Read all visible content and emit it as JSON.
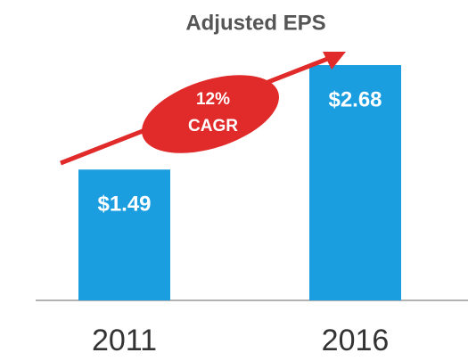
{
  "chart_data": {
    "type": "bar",
    "title": "Adjusted EPS",
    "categories": [
      "2011",
      "2016"
    ],
    "values": [
      1.49,
      2.68
    ],
    "value_labels": [
      "$1.49",
      "$2.68"
    ],
    "color": "#1a9ee0",
    "annotation": {
      "lines": [
        "12%",
        "CAGR"
      ],
      "color": "#e12b2b"
    }
  }
}
